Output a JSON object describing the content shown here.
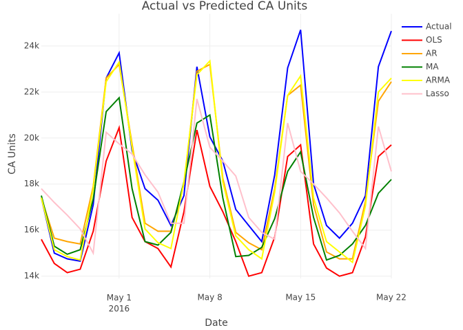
{
  "chart_data": {
    "type": "line",
    "title": "Actual vs Predicted CA Units",
    "x_label": "Date",
    "y_label": "CA Units",
    "x": [
      "2016-04-25",
      "2016-04-26",
      "2016-04-27",
      "2016-04-28",
      "2016-04-29",
      "2016-04-30",
      "2016-05-01",
      "2016-05-02",
      "2016-05-03",
      "2016-05-04",
      "2016-05-05",
      "2016-05-06",
      "2016-05-07",
      "2016-05-08",
      "2016-05-09",
      "2016-05-10",
      "2016-05-11",
      "2016-05-12",
      "2016-05-13",
      "2016-05-14",
      "2016-05-15",
      "2016-05-16",
      "2016-05-17",
      "2016-05-18",
      "2016-05-19",
      "2016-05-20",
      "2016-05-21",
      "2016-05-22"
    ],
    "series": [
      {
        "name": "Actual",
        "color": "#0000ff",
        "values": [
          17400,
          15000,
          14750,
          14650,
          17100,
          22600,
          23700,
          19450,
          17800,
          17300,
          16200,
          17500,
          23100,
          20050,
          19000,
          16900,
          16200,
          15500,
          18400,
          23050,
          24700,
          18000,
          16200,
          15650,
          16300,
          17500,
          23100,
          24650
        ]
      },
      {
        "name": "OLS",
        "color": "#ff0000",
        "values": [
          15600,
          14550,
          14150,
          14300,
          15950,
          19000,
          20450,
          16550,
          15500,
          15200,
          14400,
          16800,
          20350,
          17900,
          16800,
          15500,
          14000,
          14150,
          15700,
          19200,
          19700,
          15400,
          14350,
          14000,
          14150,
          15700,
          19200,
          19700
        ]
      },
      {
        "name": "AR",
        "color": "#ffa500",
        "values": [
          17400,
          15650,
          15500,
          15400,
          17900,
          22600,
          23200,
          19750,
          16300,
          15950,
          15950,
          18000,
          22900,
          23200,
          18250,
          15900,
          15450,
          15150,
          17800,
          21850,
          22300,
          17100,
          15050,
          14750,
          14750,
          17250,
          21600,
          22450
        ]
      },
      {
        "name": "MA",
        "color": "#008000",
        "values": [
          17500,
          15300,
          14950,
          15150,
          17350,
          21150,
          21750,
          17800,
          15500,
          15350,
          15900,
          18100,
          20650,
          21000,
          17400,
          14850,
          14900,
          15250,
          16500,
          18550,
          19400,
          16550,
          14700,
          14900,
          15400,
          16200,
          17600,
          18200
        ]
      },
      {
        "name": "ARMA",
        "color": "#ffff00",
        "values": [
          17400,
          15150,
          14850,
          14700,
          17800,
          22450,
          23300,
          19600,
          16050,
          15450,
          15200,
          18100,
          22750,
          23350,
          18100,
          15750,
          15150,
          14750,
          17650,
          21850,
          22700,
          17400,
          15500,
          15050,
          14600,
          17050,
          22000,
          22600
        ]
      },
      {
        "name": "Lasso",
        "color": "#ffc0cb",
        "values": [
          17800,
          17200,
          16650,
          16050,
          15000,
          20250,
          19750,
          19300,
          18400,
          17650,
          16300,
          16300,
          21700,
          19600,
          19000,
          18350,
          16550,
          15900,
          15600,
          20650,
          18550,
          18000,
          17400,
          16750,
          15950,
          15200,
          20500,
          18550
        ]
      }
    ],
    "xlim": [
      "2016-04-25",
      "2016-05-22"
    ],
    "xticks": [
      {
        "value": "2016-05-01",
        "label": "May 1\n2016"
      },
      {
        "value": "2016-05-08",
        "label": "May 8"
      },
      {
        "value": "2016-05-15",
        "label": "May 15"
      },
      {
        "value": "2016-05-22",
        "label": "May 22"
      }
    ],
    "ylim": [
      13900,
      25400
    ],
    "yticks": [
      {
        "value": 14000,
        "label": "14k"
      },
      {
        "value": 16000,
        "label": "16k"
      },
      {
        "value": 18000,
        "label": "18k"
      },
      {
        "value": 20000,
        "label": "20k"
      },
      {
        "value": 22000,
        "label": "22k"
      },
      {
        "value": 24000,
        "label": "24k"
      }
    ],
    "grid": true,
    "legend": "top-right"
  }
}
